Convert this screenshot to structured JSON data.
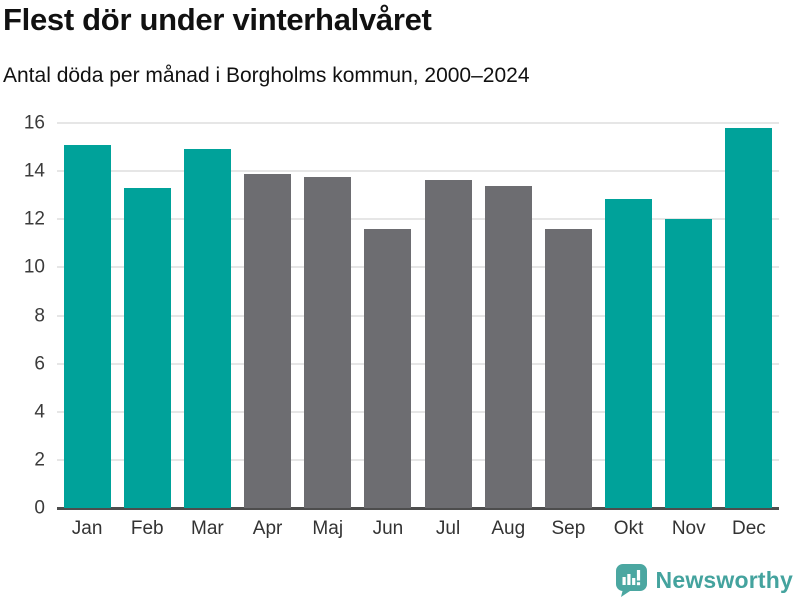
{
  "header": {
    "title": "Flest dör under vinterhalvåret",
    "subtitle": "Antal döda per månad i Borgholms kommun, 2000–2024"
  },
  "chart_data": {
    "type": "bar",
    "title": "Flest dör under vinterhalvåret",
    "subtitle": "Antal döda per månad i Borgholms kommun, 2000–2024",
    "categories": [
      "Jan",
      "Feb",
      "Mar",
      "Apr",
      "Maj",
      "Jun",
      "Jul",
      "Aug",
      "Sep",
      "Okt",
      "Nov",
      "Dec"
    ],
    "values": [
      15.1,
      13.3,
      14.9,
      13.9,
      13.75,
      11.6,
      13.65,
      13.4,
      11.6,
      12.85,
      12.0,
      15.8
    ],
    "bar_color_keys": [
      "winter",
      "winter",
      "winter",
      "summer",
      "summer",
      "summer",
      "summer",
      "summer",
      "summer",
      "winter",
      "winter",
      "winter"
    ],
    "xlabel": "",
    "ylabel": "",
    "ylim": [
      0,
      16
    ],
    "yticks": [
      0,
      2,
      4,
      6,
      8,
      10,
      12,
      14,
      16
    ],
    "grid": "horizontal",
    "legend": "none",
    "colors": {
      "winter": "#00a29a",
      "summer": "#6d6d71",
      "gridline": "#e6e6e6",
      "axis_line": "#4d4d4d",
      "tick_text": "#3b3b3b"
    }
  },
  "footer": {
    "brand": "Newsworthy",
    "brand_color": "#44a39e",
    "logo_color": "#4ba7a1",
    "logo_icon": "bar-chart-speech-bubble"
  }
}
